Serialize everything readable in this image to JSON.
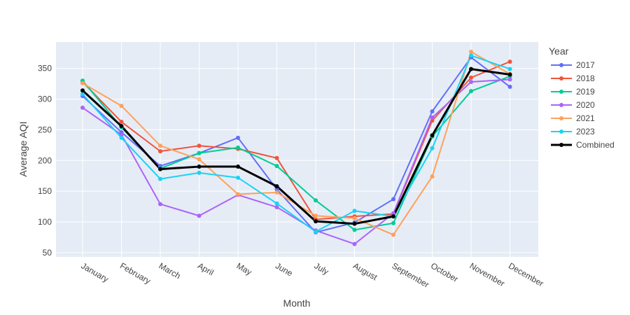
{
  "chart_data": {
    "type": "line",
    "xlabel": "Month",
    "ylabel": "Average AQI",
    "ylim": [
      43,
      393
    ],
    "yticks": [
      50,
      100,
      150,
      200,
      250,
      300,
      350
    ],
    "grid": true,
    "legend": {
      "title": "Year",
      "placement": "right"
    },
    "categories": [
      "January",
      "February",
      "March",
      "April",
      "May",
      "June",
      "July",
      "August",
      "September",
      "October",
      "November",
      "December"
    ],
    "series": [
      {
        "name": "2017",
        "color": "#636efa",
        "values": [
          305,
          246,
          191,
          212,
          237,
          153,
          83,
          99,
          137,
          280,
          368,
          320
        ]
      },
      {
        "name": "2018",
        "color": "#EF553B",
        "values": [
          328,
          263,
          215,
          224,
          219,
          204,
          104,
          109,
          113,
          265,
          335,
          361
        ]
      },
      {
        "name": "2019",
        "color": "#00cc96",
        "values": [
          330,
          254,
          187,
          212,
          221,
          191,
          135,
          87,
          98,
          239,
          313,
          337
        ]
      },
      {
        "name": "2020",
        "color": "#ab63fa",
        "values": [
          286,
          242,
          129,
          110,
          144,
          124,
          86,
          64,
          114,
          270,
          328,
          332
        ]
      },
      {
        "name": "2021",
        "color": "#FFA15A",
        "values": [
          326,
          289,
          224,
          202,
          145,
          148,
          110,
          106,
          79,
          174,
          377,
          341
        ]
      },
      {
        "name": "2023",
        "color": "#19d3f3",
        "values": [
          308,
          237,
          170,
          180,
          172,
          130,
          84,
          118,
          109,
          220,
          371,
          349
        ]
      },
      {
        "name": "Combined",
        "color": "#000000",
        "bold": true,
        "values": [
          314,
          256,
          186,
          190,
          190,
          158,
          101,
          97,
          109,
          241,
          349,
          340
        ]
      }
    ]
  }
}
